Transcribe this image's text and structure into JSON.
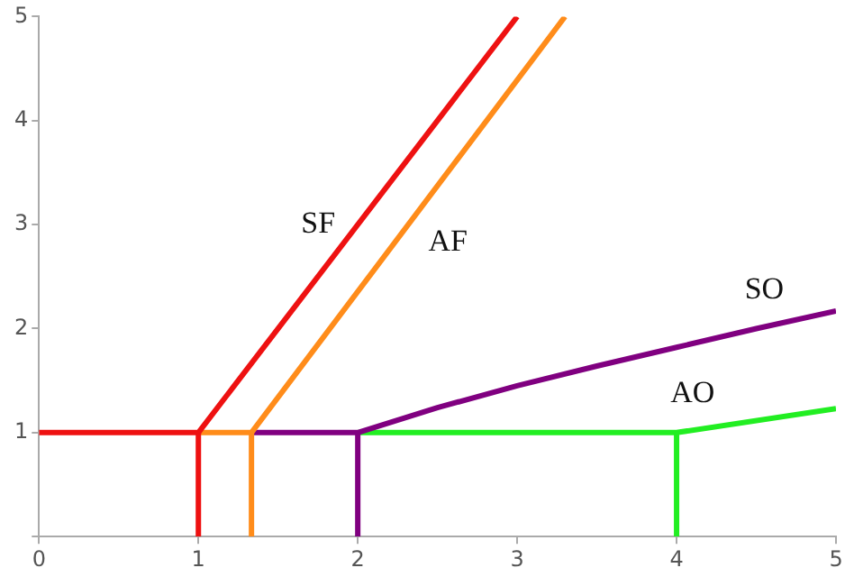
{
  "chart_data": {
    "type": "line",
    "xlim": [
      0,
      5
    ],
    "ylim": [
      0,
      5
    ],
    "xticks": [
      0,
      1,
      2,
      3,
      4,
      5
    ],
    "yticks": [
      {
        "value": 0,
        "label": null
      },
      1,
      2,
      3,
      4,
      5
    ],
    "grid": false,
    "legend": false,
    "marker": "none",
    "line_style": "solid",
    "series": [
      {
        "name": "SF",
        "color": "#ee1111",
        "x": [
          0,
          1,
          3
        ],
        "values": [
          1,
          1,
          5
        ]
      },
      {
        "color": "#ee1111",
        "x": [
          1,
          1
        ],
        "values": [
          0,
          1
        ]
      },
      {
        "name": "AF",
        "color": "#ff8c1a",
        "x": [
          1,
          1.333,
          3.3
        ],
        "values": [
          1,
          1,
          5
        ]
      },
      {
        "color": "#ff8c1a",
        "x": [
          1.333,
          1.333
        ],
        "values": [
          0,
          1
        ]
      },
      {
        "name": "SO",
        "color": "#800080",
        "x": [
          1.333,
          2,
          2.5,
          3,
          3.5,
          4,
          4.5,
          5
        ],
        "values": [
          1,
          1,
          1.24,
          1.45,
          1.64,
          1.82,
          2.0,
          2.17
        ]
      },
      {
        "color": "#800080",
        "x": [
          2,
          2
        ],
        "values": [
          0,
          1
        ]
      },
      {
        "name": "AO",
        "color": "#22ee22",
        "x": [
          2,
          4,
          5
        ],
        "values": [
          1,
          1,
          1.23
        ]
      },
      {
        "color": "#22ee22",
        "x": [
          4,
          4
        ],
        "values": [
          0,
          1
        ]
      }
    ]
  }
}
